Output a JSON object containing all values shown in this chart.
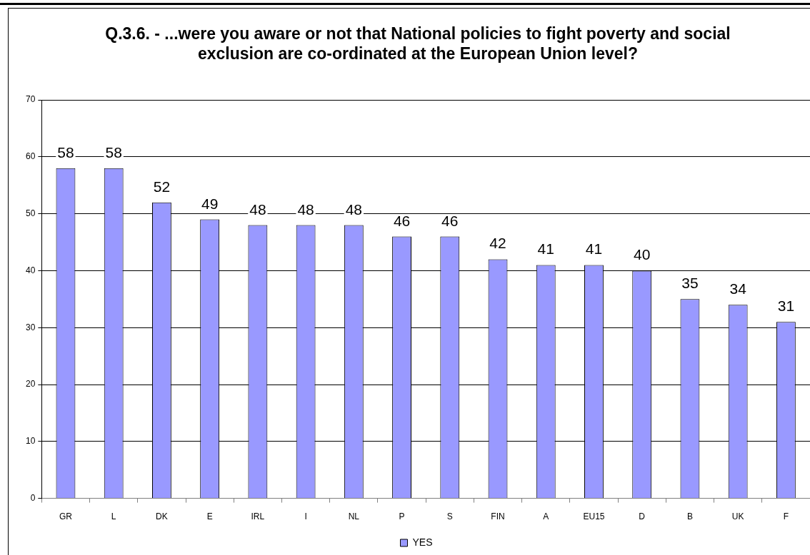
{
  "chart_data": {
    "type": "bar",
    "title": "Q.3.6. - ...were you aware or not that National policies to fight poverty and social exclusion are co-ordinated at the European Union level?",
    "categories": [
      "GR",
      "L",
      "DK",
      "E",
      "IRL",
      "I",
      "NL",
      "P",
      "S",
      "FIN",
      "A",
      "EU15",
      "D",
      "B",
      "UK",
      "F"
    ],
    "series": [
      {
        "name": "YES",
        "color": "#9999ff",
        "values": [
          58,
          58,
          52,
          49,
          48,
          48,
          48,
          46,
          46,
          42,
          41,
          41,
          40,
          35,
          34,
          31
        ]
      }
    ],
    "ylim": [
      0,
      70
    ],
    "yticks": [
      0,
      10,
      20,
      30,
      40,
      50,
      60,
      70
    ],
    "grid": "y",
    "legend": "bottom",
    "data_labels": true
  }
}
